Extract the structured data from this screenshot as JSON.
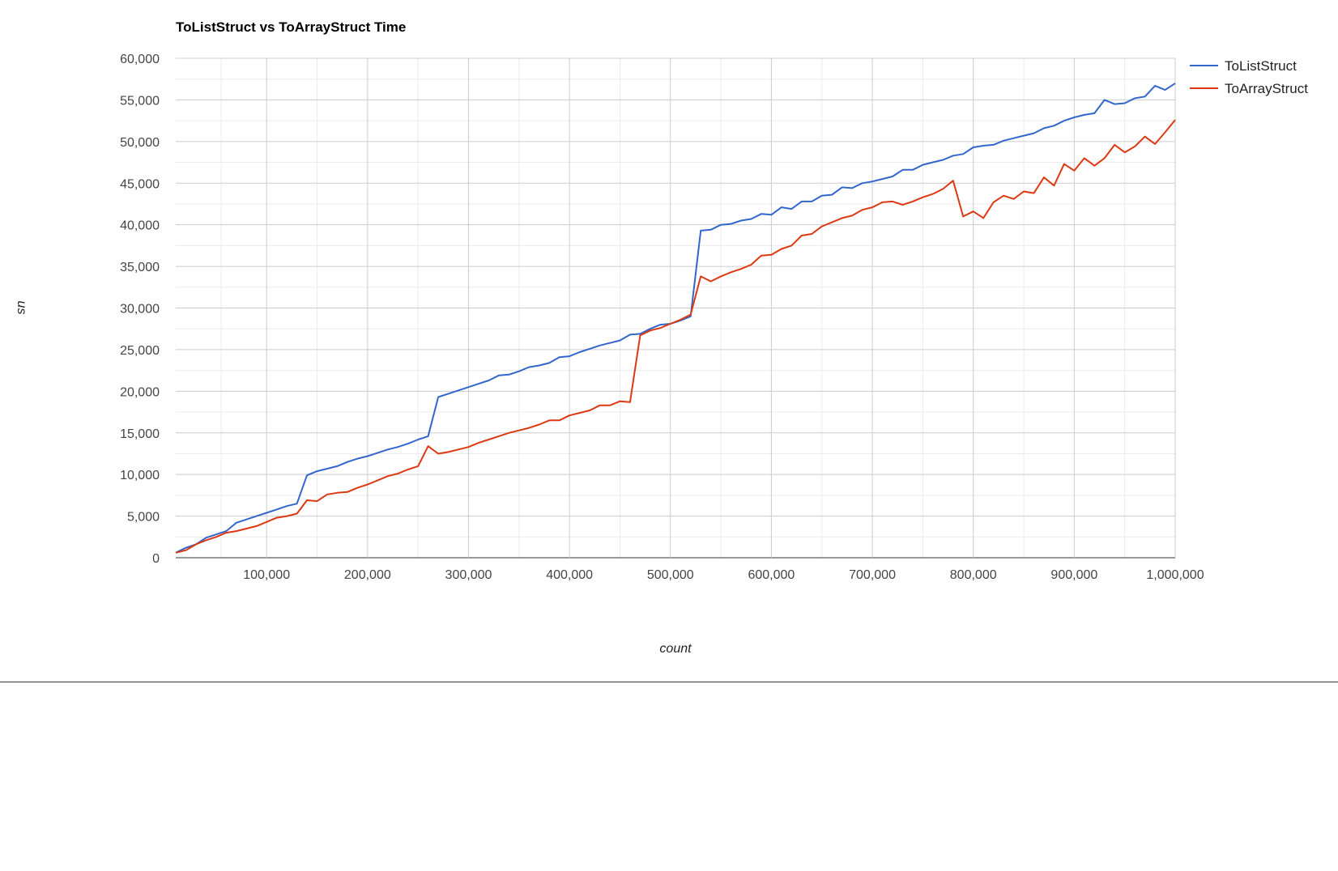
{
  "chart_data": {
    "type": "line",
    "title": "ToListStruct vs ToArrayStruct Time",
    "xlabel": "count",
    "ylabel": "us",
    "xlim": [
      10000,
      1000000
    ],
    "ylim": [
      0,
      60000
    ],
    "x_ticks": [
      100000,
      200000,
      300000,
      400000,
      500000,
      600000,
      700000,
      800000,
      900000,
      1000000
    ],
    "x_tick_labels": [
      "100,000",
      "200,000",
      "300,000",
      "400,000",
      "500,000",
      "600,000",
      "700,000",
      "800,000",
      "900,000",
      "1,000,000"
    ],
    "y_ticks": [
      0,
      5000,
      10000,
      15000,
      20000,
      25000,
      30000,
      35000,
      40000,
      45000,
      50000,
      55000,
      60000
    ],
    "y_tick_labels": [
      "0",
      "5,000",
      "10,000",
      "15,000",
      "20,000",
      "25,000",
      "30,000",
      "35,000",
      "40,000",
      "45,000",
      "50,000",
      "55,000",
      "60,000"
    ],
    "grid": true,
    "legend_position": "right",
    "x": [
      10000,
      20000,
      30000,
      40000,
      50000,
      60000,
      70000,
      80000,
      90000,
      100000,
      110000,
      120000,
      130000,
      140000,
      150000,
      160000,
      170000,
      180000,
      190000,
      200000,
      210000,
      220000,
      230000,
      240000,
      250000,
      260000,
      270000,
      280000,
      290000,
      300000,
      310000,
      320000,
      330000,
      340000,
      350000,
      360000,
      370000,
      380000,
      390000,
      400000,
      410000,
      420000,
      430000,
      440000,
      450000,
      460000,
      470000,
      480000,
      490000,
      500000,
      510000,
      520000,
      530000,
      540000,
      550000,
      560000,
      570000,
      580000,
      590000,
      600000,
      610000,
      620000,
      630000,
      640000,
      650000,
      660000,
      670000,
      680000,
      690000,
      700000,
      710000,
      720000,
      730000,
      740000,
      750000,
      760000,
      770000,
      780000,
      790000,
      800000,
      810000,
      820000,
      830000,
      840000,
      850000,
      860000,
      870000,
      880000,
      890000,
      900000,
      910000,
      920000,
      930000,
      940000,
      950000,
      960000,
      970000,
      980000,
      990000,
      1000000
    ],
    "series": [
      {
        "name": "ToListStruct",
        "color": "#3366cc",
        "values": [
          600,
          1200,
          1600,
          2400,
          2800,
          3200,
          4200,
          4600,
          5000,
          5400,
          5800,
          6200,
          6500,
          9900,
          10400,
          10700,
          11000,
          11500,
          11900,
          12200,
          12600,
          13000,
          13300,
          13700,
          14200,
          14600,
          19300,
          19700,
          20100,
          20500,
          20900,
          21300,
          21900,
          22000,
          22400,
          22900,
          23100,
          23400,
          24100,
          24200,
          24700,
          25100,
          25500,
          25800,
          26100,
          26800,
          26900,
          27500,
          28000,
          28100,
          28500,
          29000,
          39300,
          39400,
          40000,
          40100,
          40500,
          40700,
          41300,
          41200,
          42100,
          41900,
          42800,
          42800,
          43500,
          43600,
          44500,
          44400,
          45000,
          45200,
          45500,
          45800,
          46600,
          46600,
          47200,
          47500,
          47800,
          48300,
          48500,
          49300,
          49500,
          49600,
          50100,
          50400,
          50700,
          51000,
          51600,
          51900,
          52500,
          52900,
          53200,
          53400,
          55000,
          54500,
          54600,
          55200,
          55400,
          56700,
          56200,
          57000
        ]
      },
      {
        "name": "ToArrayStruct",
        "color": "#dc3912",
        "values": [
          600,
          900,
          1600,
          2100,
          2500,
          3000,
          3200,
          3500,
          3800,
          4300,
          4800,
          5000,
          5300,
          6900,
          6800,
          7600,
          7800,
          7900,
          8400,
          8800,
          9300,
          9800,
          10100,
          10600,
          11000,
          13400,
          12500,
          12700,
          13000,
          13300,
          13800,
          14200,
          14600,
          15000,
          15300,
          15600,
          16000,
          16500,
          16500,
          17100,
          17400,
          17700,
          18300,
          18300,
          18800,
          18700,
          26700,
          27300,
          27600,
          28100,
          28600,
          29200,
          33800,
          33200,
          33800,
          34300,
          34700,
          35200,
          36300,
          36400,
          37100,
          37500,
          38700,
          38900,
          39800,
          40300,
          40800,
          41100,
          41800,
          42100,
          42700,
          42800,
          42400,
          42800,
          43300,
          43700,
          44300,
          45300,
          41000,
          41600,
          40800,
          42700,
          43500,
          43100,
          44000,
          43800,
          45700,
          44700,
          47300,
          46500,
          48000,
          47100,
          48000,
          49600,
          48700,
          49400,
          50600,
          49700,
          51100,
          52600
        ]
      }
    ]
  }
}
